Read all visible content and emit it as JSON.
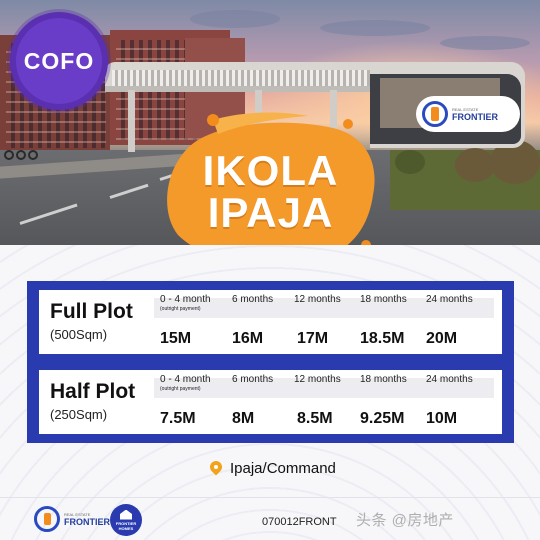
{
  "badge": {
    "text": "COFO"
  },
  "hero": {
    "title_line1": "IKOLA",
    "title_line2": "IPAJA"
  },
  "brand": {
    "name": "FRONTIER",
    "tagline": "REAL ESTATE",
    "homes_line1": "FRONTIER",
    "homes_line2": "HOMES"
  },
  "colors": {
    "primary_blue": "#2a3bb0",
    "accent_orange": "#f28c1c",
    "badge_purple": "#5a2fb0"
  },
  "periods": [
    {
      "label": "0 - 4 month",
      "sub": "(outright payment)"
    },
    {
      "label": "6 months",
      "sub": ""
    },
    {
      "label": "12 months",
      "sub": ""
    },
    {
      "label": "18 months",
      "sub": ""
    },
    {
      "label": "24 months",
      "sub": ""
    }
  ],
  "plots": [
    {
      "name": "Full Plot",
      "size": "(500Sqm)",
      "prices": [
        "15M",
        "16M",
        "17M",
        "18.5M",
        "20M"
      ]
    },
    {
      "name": "Half Plot",
      "size": "(250Sqm)",
      "prices": [
        "7.5M",
        "8M",
        "8.5M",
        "9.25M",
        "10M"
      ]
    }
  ],
  "location": {
    "text": "Ipaja/Command",
    "icon": "location-pin-icon"
  },
  "footer": {
    "contact": "070012FRONT",
    "watermark": "头条 @房地产"
  }
}
